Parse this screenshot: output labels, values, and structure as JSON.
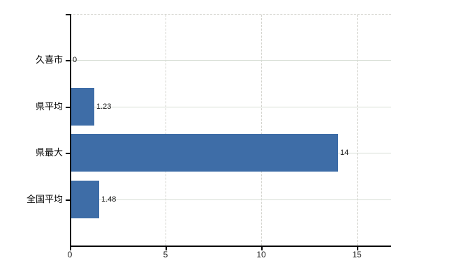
{
  "chart_data": {
    "type": "bar",
    "orientation": "horizontal",
    "title": "",
    "categories": [
      "久喜市",
      "県平均",
      "県最大",
      "全国平均"
    ],
    "values": [
      0,
      1.23,
      14,
      1.48
    ],
    "value_labels": [
      "0",
      "1.23",
      "14",
      "1.48"
    ],
    "x_ticks": [
      0,
      5,
      10,
      15
    ],
    "x_tick_labels": [
      "0",
      "5",
      "10",
      "15"
    ],
    "xlim": [
      0,
      16.8
    ],
    "grid": true,
    "legend": false,
    "colors": {
      "bar": "#3e6da7",
      "axis": "#000000",
      "gridline_vertical": "#d3d3cd",
      "gridline_horizontal": "#d6ddd4",
      "plot_border": "#d3d3cd",
      "category_label": "#000000",
      "value_label": "#1a1a1a",
      "tick_label": "#1a1a1a",
      "background": "#ffffff"
    }
  }
}
